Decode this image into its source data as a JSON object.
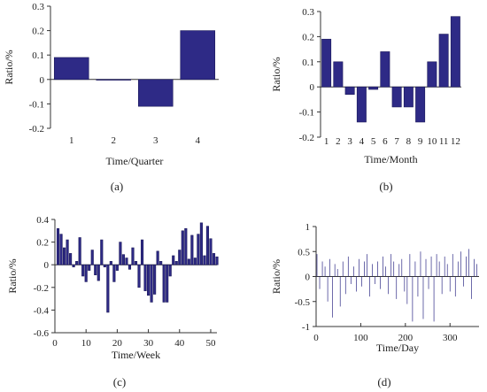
{
  "chart_data": [
    {
      "id": "a",
      "type": "bar",
      "caption": "(a)",
      "xlabel": "Time/Quarter",
      "ylabel": "Ratio/%",
      "ylim": [
        -0.2,
        0.3
      ],
      "yticks": [
        -0.2,
        -0.1,
        0,
        0.1,
        0.2,
        0.3
      ],
      "yticklabels": [
        "-0.2",
        "-0.1",
        "0",
        "0.1",
        "0.2",
        "0.3"
      ],
      "categories": [
        "1",
        "2",
        "3",
        "4"
      ],
      "values": [
        0.09,
        0.0,
        -0.11,
        0.2
      ],
      "bar_color": "#2e2a86"
    },
    {
      "id": "b",
      "type": "bar",
      "caption": "(b)",
      "xlabel": "Time/Month",
      "ylabel": "Ratio/%",
      "ylim": [
        -0.2,
        0.3
      ],
      "yticks": [
        -0.2,
        -0.1,
        0,
        0.1,
        0.2,
        0.3
      ],
      "yticklabels": [
        "-0.2",
        "-0.1",
        "0",
        "0.1",
        "0.2",
        "0.3"
      ],
      "categories": [
        "1",
        "2",
        "3",
        "4",
        "5",
        "6",
        "7",
        "8",
        "9",
        "10",
        "11",
        "12"
      ],
      "values": [
        0.19,
        0.1,
        -0.03,
        -0.14,
        -0.01,
        0.14,
        -0.08,
        -0.08,
        -0.14,
        0.1,
        0.21,
        0.28
      ],
      "bar_color": "#2e2a86"
    },
    {
      "id": "c",
      "type": "bar",
      "caption": "(c)",
      "xlabel": "Time/Week",
      "ylabel": "Ratio/%",
      "ylim": [
        -0.6,
        0.4
      ],
      "yticks": [
        -0.6,
        -0.4,
        -0.2,
        0,
        0.2,
        0.4
      ],
      "yticklabels": [
        "-0.6",
        "-0.4",
        "-0.2",
        "0",
        "0.2",
        "0.4"
      ],
      "xlim": [
        0,
        52
      ],
      "xticks": [
        0,
        10,
        20,
        30,
        40,
        50
      ],
      "xticklabels": [
        "0",
        "10",
        "20",
        "30",
        "40",
        "50"
      ],
      "x": [
        1,
        2,
        3,
        4,
        5,
        6,
        7,
        8,
        9,
        10,
        11,
        12,
        13,
        14,
        15,
        16,
        17,
        18,
        19,
        20,
        21,
        22,
        23,
        24,
        25,
        26,
        27,
        28,
        29,
        30,
        31,
        32,
        33,
        34,
        35,
        36,
        37,
        38,
        39,
        40,
        41,
        42,
        43,
        44,
        45,
        46,
        47,
        48,
        49,
        50,
        51,
        52
      ],
      "values": [
        0.32,
        0.27,
        0.15,
        0.22,
        0.1,
        -0.02,
        0.03,
        0.24,
        -0.1,
        -0.15,
        -0.05,
        0.13,
        -0.09,
        -0.14,
        0.22,
        -0.02,
        -0.42,
        0.03,
        -0.15,
        -0.05,
        0.2,
        0.09,
        0.06,
        -0.04,
        0.15,
        0.03,
        -0.2,
        0.22,
        -0.23,
        -0.27,
        -0.33,
        -0.26,
        0.12,
        0.03,
        -0.33,
        -0.33,
        -0.1,
        0.08,
        0.03,
        0.13,
        0.3,
        0.32,
        0.05,
        0.26,
        0.06,
        0.27,
        0.37,
        0.08,
        0.34,
        0.23,
        0.1,
        0.07
      ],
      "bar_color": "#2e2a86"
    },
    {
      "id": "d",
      "type": "bar",
      "caption": "(d)",
      "xlabel": "Time/Day",
      "ylabel": "Ratio/%",
      "ylim": [
        -1,
        1
      ],
      "yticks": [
        -1,
        -0.5,
        0,
        0.5,
        1
      ],
      "yticklabels": [
        "-1",
        "-0.5",
        "0",
        "0.5",
        "1"
      ],
      "xlim": [
        0,
        365
      ],
      "xticks": [
        0,
        100,
        200,
        300
      ],
      "xticklabels": [
        "0",
        "100",
        "200",
        "300"
      ],
      "x": [
        2,
        8,
        14,
        20,
        26,
        31,
        37,
        42,
        48,
        54,
        60,
        66,
        72,
        78,
        84,
        90,
        96,
        102,
        108,
        114,
        120,
        126,
        132,
        138,
        144,
        150,
        156,
        162,
        168,
        174,
        180,
        186,
        192,
        198,
        204,
        210,
        216,
        222,
        228,
        234,
        240,
        246,
        252,
        258,
        264,
        270,
        276,
        282,
        288,
        294,
        300,
        306,
        312,
        318,
        324,
        330,
        336,
        342,
        348,
        354,
        360
      ],
      "values": [
        0.45,
        -0.25,
        0.3,
        0.2,
        -0.5,
        0.35,
        -0.82,
        0.25,
        0.15,
        -0.6,
        0.3,
        -0.35,
        0.4,
        -0.15,
        0.2,
        -0.3,
        0.35,
        -0.2,
        0.3,
        0.45,
        -0.4,
        0.25,
        -0.15,
        0.3,
        -0.25,
        0.4,
        0.2,
        -0.35,
        0.45,
        0.3,
        -0.45,
        0.25,
        0.35,
        -0.3,
        -0.55,
        0.45,
        -0.9,
        0.3,
        -0.4,
        0.5,
        -0.85,
        0.35,
        -0.25,
        0.4,
        -0.9,
        0.45,
        0.3,
        -0.35,
        0.4,
        0.25,
        -0.3,
        0.45,
        -0.4,
        0.3,
        0.5,
        -0.2,
        0.4,
        0.55,
        -0.45,
        0.35,
        0.25
      ],
      "bar_color": "#2e2a86"
    }
  ]
}
